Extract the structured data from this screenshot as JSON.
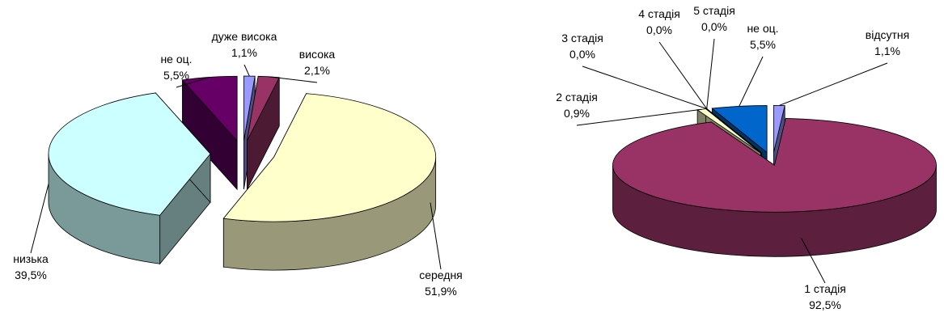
{
  "chart_data": [
    {
      "type": "pie",
      "categories": [
        "дуже висока",
        "висока",
        "середня",
        "низька",
        "не оц."
      ],
      "values": [
        1.1,
        2.1,
        51.9,
        39.5,
        5.5
      ],
      "value_labels": [
        "1,1%",
        "2,1%",
        "51,9%",
        "39,5%",
        "5,5%"
      ],
      "colors": [
        "#9999ff",
        "#993366",
        "#ffffcc",
        "#ccffff",
        "#660066"
      ]
    },
    {
      "type": "pie",
      "categories": [
        "відсутня",
        "1 стадія",
        "2 стадія",
        "3 стадія",
        "4 стадія",
        "5 стадія",
        "не оц."
      ],
      "values": [
        1.1,
        92.5,
        0.9,
        0.0,
        0.0,
        0.0,
        5.5
      ],
      "value_labels": [
        "1,1%",
        "92,5%",
        "0,9%",
        "0,0%",
        "0,0%",
        "0,0%",
        "5,5%"
      ],
      "colors": [
        "#9999ff",
        "#993366",
        "#ffffcc",
        "#ccffff",
        "#660066",
        "#ff8080",
        "#0066cc"
      ]
    }
  ]
}
